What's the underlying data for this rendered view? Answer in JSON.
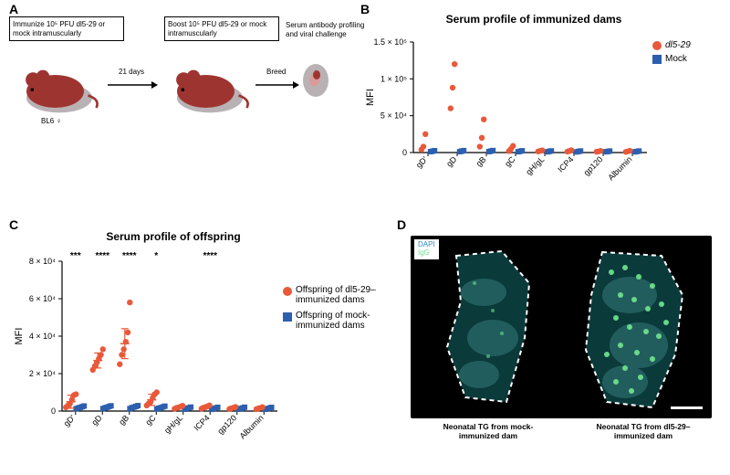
{
  "labels": {
    "A": "A",
    "B": "B",
    "C": "C",
    "D": "D"
  },
  "colors": {
    "dl529": "#e8593a",
    "mock": "#2d5fae",
    "mouse_body": "#9e3430",
    "mouse_shadow": "#b9b2b5",
    "axis": "#000000",
    "bg": "#ffffff",
    "tissue_fill": "#0a3a3a",
    "igG_dots": "#6de08c",
    "dapi": "#2d8cc7"
  },
  "panelA": {
    "box1": "Immunize 10⁵ PFU\ndl5-29 or mock intramuscularly",
    "box2": "Boost 10⁵ PFU\ndl5-29 or mock intramuscularly",
    "box3": "Serum antibody profiling\nand viral challenge",
    "arrow_label": "21 days",
    "mouse_label": "BL6 ♀",
    "breed_label": "Breed"
  },
  "panelB": {
    "title": "Serum profile of immunized dams",
    "yaxis": "MFI",
    "ylim": [
      0,
      150000
    ],
    "yticks": [
      0,
      50000,
      100000,
      150000
    ],
    "ytick_labels": [
      "0",
      "5 × 10⁴",
      "1 × 10⁵",
      "1.5 × 10⁵"
    ],
    "categories": [
      "gD'",
      "gD",
      "gB",
      "gC",
      "gH/gL",
      "ICP4",
      "gp120",
      "Albumin"
    ],
    "legend": {
      "dl529": "dl5-29",
      "mock": "Mock"
    },
    "series": {
      "dl529": {
        "marker": "circle",
        "color": "#e8593a",
        "points": {
          "gD'": [
            4000,
            8000,
            25000
          ],
          "gD": [
            60000,
            88000,
            120000
          ],
          "gB": [
            8000,
            20000,
            45000
          ],
          "gC": [
            2000,
            5000,
            9000
          ],
          "gH/gL": [
            1500,
            2200,
            3000
          ],
          "ICP4": [
            1300,
            2000,
            3100
          ],
          "gp120": [
            1100,
            1500,
            2300
          ],
          "Albumin": [
            900,
            1600,
            2400
          ]
        }
      },
      "mock": {
        "marker": "square",
        "color": "#2d5fae",
        "points": {
          "gD'": [
            1200,
            1800,
            2500
          ],
          "gD": [
            1200,
            1900,
            2600
          ],
          "gB": [
            1300,
            2000,
            2700
          ],
          "gC": [
            1100,
            1700,
            2400
          ],
          "gH/gL": [
            1000,
            1600,
            2200
          ],
          "ICP4": [
            900,
            1500,
            2100
          ],
          "gp120": [
            1050,
            1400,
            2000
          ],
          "Albumin": [
            950,
            1450,
            2050
          ]
        }
      }
    }
  },
  "panelC": {
    "title": "Serum profile of offspring",
    "yaxis": "MFI",
    "ylim": [
      0,
      80000
    ],
    "yticks": [
      0,
      20000,
      40000,
      60000,
      80000
    ],
    "ytick_labels": [
      "0",
      "2 × 10⁴",
      "4 × 10⁴",
      "6 × 10⁴",
      "8 × 10⁴"
    ],
    "categories": [
      "gD'",
      "gD",
      "gB",
      "gC",
      "gH/gL",
      "ICP4",
      "gp120",
      "Albumin"
    ],
    "sig": {
      "gD'": "***",
      "gD": "****",
      "gB": "****",
      "gC": "*",
      "ICP4": "****"
    },
    "legend": {
      "dl529": "Offspring of dl5-29–\nimmunized dams",
      "mock": "Offspring of mock-\nimmunized dams"
    },
    "series": {
      "dl529": {
        "marker": "circle",
        "color": "#e8593a",
        "mean_err": {
          "gD'": [
            5000,
            3500
          ],
          "gD": [
            27000,
            4000
          ],
          "gB": [
            36000,
            8000
          ],
          "gC": [
            6000,
            3000
          ],
          "gH/gL": [
            2000,
            800
          ],
          "ICP4": [
            2100,
            700
          ],
          "gp120": [
            1700,
            500
          ],
          "Albumin": [
            1600,
            500
          ]
        },
        "points": {
          "gD'": [
            2000,
            3000,
            4000,
            6000,
            8500,
            9000
          ],
          "gD": [
            22000,
            24000,
            26000,
            28000,
            30000,
            33000
          ],
          "gB": [
            25000,
            30000,
            33000,
            37000,
            42000,
            58000
          ],
          "gC": [
            3000,
            4000,
            5000,
            7000,
            9000,
            10000
          ],
          "gH/gL": [
            1200,
            1700,
            2000,
            2400,
            2800
          ],
          "ICP4": [
            1300,
            1800,
            2100,
            2600,
            3000
          ],
          "gp120": [
            1100,
            1500,
            1800,
            2200
          ],
          "Albumin": [
            1000,
            1400,
            1700,
            2100
          ]
        }
      },
      "mock": {
        "marker": "square",
        "color": "#2d5fae",
        "mean_err": {
          "gD'": [
            1800,
            600
          ],
          "gD": [
            1900,
            600
          ],
          "gB": [
            2000,
            700
          ],
          "gC": [
            1700,
            500
          ],
          "gH/gL": [
            1500,
            500
          ],
          "ICP4": [
            1400,
            400
          ],
          "gp120": [
            1450,
            400
          ],
          "Albumin": [
            1400,
            400
          ]
        },
        "points": {
          "gD'": [
            1200,
            1600,
            1900,
            2300,
            2700
          ],
          "gD": [
            1300,
            1700,
            2000,
            2400,
            2800
          ],
          "gB": [
            1300,
            1800,
            2100,
            2500,
            2900
          ],
          "gC": [
            1100,
            1500,
            1800,
            2200,
            2600
          ],
          "gH/gL": [
            1000,
            1400,
            1700,
            2100
          ],
          "ICP4": [
            900,
            1300,
            1600,
            2000
          ],
          "gp120": [
            1000,
            1350,
            1650,
            2050
          ],
          "Albumin": [
            950,
            1300,
            1600,
            1950
          ]
        }
      }
    }
  },
  "panelD": {
    "dapi_label": "DAPI",
    "igg_label": "IgG",
    "caption_left": "Neonatal TG from mock-\nimmunized dam",
    "caption_right": "Neonatal TG from dl5-29–\nimmunized dam"
  }
}
